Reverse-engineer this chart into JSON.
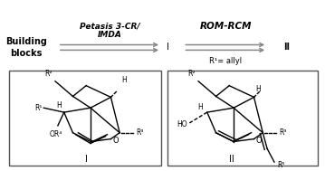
{
  "bg_color": "#ffffff",
  "box_color": "#555555",
  "text_color": "#000000",
  "arrow_color": "#888888",
  "building_blocks_text": "Building\nblocks",
  "arrow1_line1": "Petasis 3-CR/",
  "arrow1_line2": "IMDA",
  "arrow2_label": "ROM-RCM",
  "arrow2_sub": "R¹= allyl",
  "label_I_top": "I",
  "label_II_top": "II",
  "label_I_box": "I",
  "label_II_box": "II"
}
